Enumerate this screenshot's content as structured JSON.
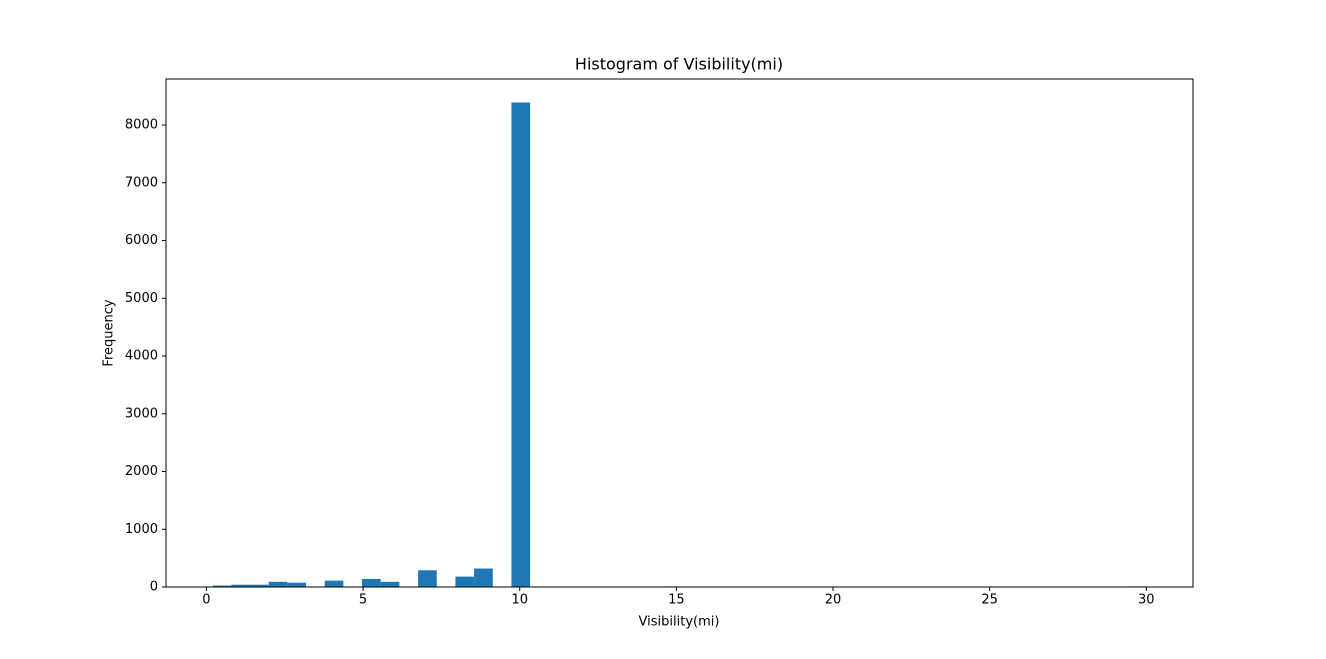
{
  "chart_data": {
    "type": "histogram",
    "title": "Histogram of Visibility(mi)",
    "x_label": "Visibility(mi)",
    "y_label": "Frequency",
    "color": "#1f77b4",
    "bins": [
      0.2,
      0.796,
      1.392,
      1.988,
      2.584,
      3.18,
      3.776,
      4.372,
      4.968,
      5.564,
      6.16,
      6.756,
      7.352,
      7.948,
      8.544,
      9.14,
      9.736,
      10.332,
      10.928,
      11.524,
      12.12,
      12.716,
      13.312,
      13.908,
      14.504,
      15.1,
      15.696,
      16.292,
      16.888,
      17.484,
      18.08,
      18.676,
      19.272,
      19.868,
      20.464,
      21.06,
      21.656,
      22.252,
      22.848,
      23.444,
      24.04,
      24.636,
      25.232,
      25.828,
      26.424,
      27.02,
      27.616,
      28.212,
      28.808,
      29.404,
      30
    ],
    "values": [
      25,
      40,
      40,
      90,
      75,
      0,
      110,
      0,
      140,
      90,
      0,
      290,
      0,
      180,
      320,
      0,
      8390,
      0,
      0,
      0,
      0,
      0,
      0,
      0,
      10,
      0,
      0,
      0,
      0,
      0,
      0,
      0,
      0,
      8,
      0,
      0,
      0,
      0,
      0,
      0,
      0,
      0,
      0,
      0,
      0,
      0,
      0,
      0,
      0,
      10
    ],
    "xlim": [
      -1.29,
      31.49
    ],
    "ylim": [
      0,
      8797
    ],
    "xticks": [
      0,
      5,
      10,
      15,
      20,
      25,
      30
    ],
    "yticks": [
      0,
      1000,
      2000,
      3000,
      4000,
      5000,
      6000,
      7000,
      8000
    ]
  }
}
